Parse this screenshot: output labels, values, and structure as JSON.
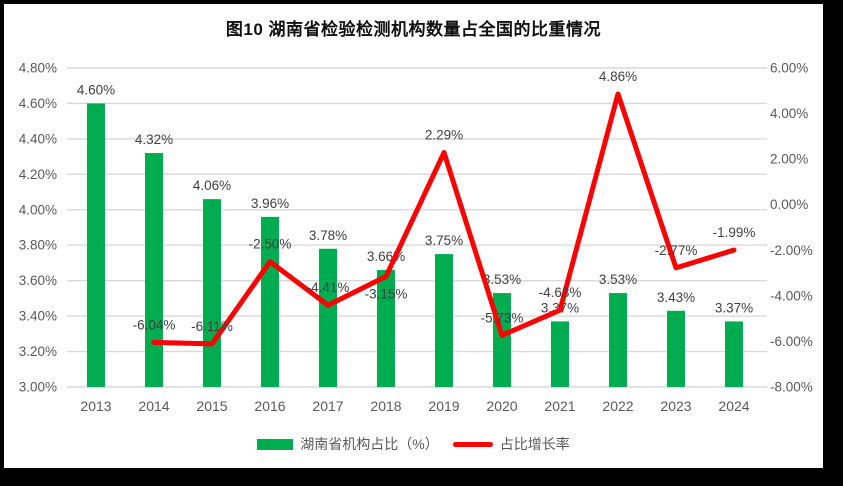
{
  "title": "图10  湖南省检验检测机构数量占全国的比重情况",
  "legend": {
    "bar_label": "湖南省机构占比（%）",
    "line_label": "占比增长率"
  },
  "colors": {
    "bar": "#00AC50",
    "line": "#FF0000",
    "grid": "#D9D9D9",
    "axis_text": "#595959",
    "data_label": "#404040",
    "background": "#FFFFFF",
    "frame": "#000000"
  },
  "chart_data": {
    "type": "bar",
    "subtype": "bar-line-combo",
    "title": "图10  湖南省检验检测机构数量占全国的比重情况",
    "categories": [
      "2013",
      "2014",
      "2015",
      "2016",
      "2017",
      "2018",
      "2019",
      "2020",
      "2021",
      "2022",
      "2023",
      "2024"
    ],
    "series": [
      {
        "name": "湖南省机构占比（%）",
        "type": "bar",
        "axis": "left",
        "color": "#00AC50",
        "values": [
          4.6,
          4.32,
          4.06,
          3.96,
          3.78,
          3.66,
          3.75,
          3.53,
          3.37,
          3.53,
          3.43,
          3.37
        ],
        "labels": [
          "4.60%",
          "4.32%",
          "4.06%",
          "3.96%",
          "3.78%",
          "3.66%",
          "3.75%",
          "3.53%",
          "3.37%",
          "3.53%",
          "3.43%",
          "3.37%"
        ]
      },
      {
        "name": "占比增长率",
        "type": "line",
        "axis": "right",
        "color": "#FF0000",
        "values": [
          null,
          -6.04,
          -6.11,
          -2.5,
          -4.41,
          -3.15,
          2.29,
          -5.73,
          -4.63,
          4.86,
          -2.77,
          -1.99
        ],
        "labels": [
          null,
          "-6.04%",
          "-6.11%",
          "-2.50%",
          "-4.41%",
          "-3.15%",
          "2.29%",
          "-5.73%",
          "-4.63%",
          "4.86%",
          "-2.77%",
          "-1.99%"
        ],
        "label_side": [
          null,
          "above",
          "above",
          "above",
          "above",
          "below",
          "above",
          "above",
          "above",
          "above",
          "above",
          "above"
        ]
      }
    ],
    "left_axis": {
      "min": 3.0,
      "max": 4.8,
      "step": 0.2,
      "ticks": [
        "4.80%",
        "4.60%",
        "4.40%",
        "4.20%",
        "4.00%",
        "3.80%",
        "3.60%",
        "3.40%",
        "3.20%",
        "3.00%"
      ]
    },
    "right_axis": {
      "min": -8,
      "max": 6,
      "step": 2,
      "ticks": [
        "6.00%",
        "4.00%",
        "2.00%",
        "0.00%",
        "-2.00%",
        "-4.00%",
        "-6.00%",
        "-8.00%"
      ]
    },
    "grid": true,
    "legend_position": "bottom"
  }
}
